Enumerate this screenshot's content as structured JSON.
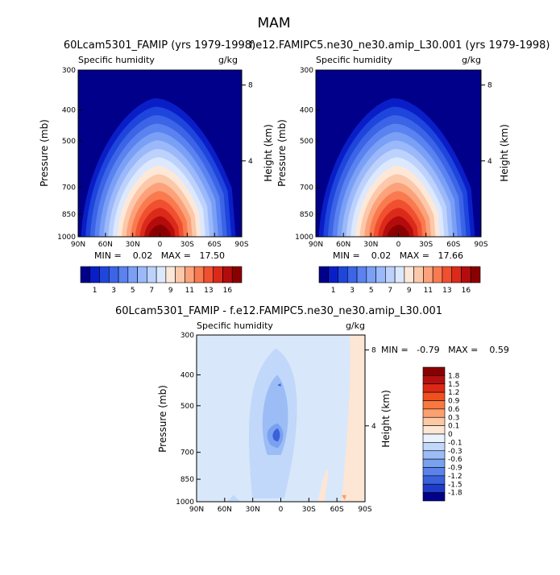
{
  "page_title": "MAM",
  "chart_data": [
    {
      "type": "contour",
      "title": "60Lcam5301_FAMIP (yrs 1979-1998)",
      "variable": "Specific humidity",
      "units": "g/kg",
      "xlabel": "",
      "ylabel": "Pressure (mb)",
      "y2label": "Height (km)",
      "x_ticks": [
        "90N",
        "60N",
        "30N",
        "0",
        "30S",
        "60S",
        "90S"
      ],
      "y_ticks": [
        "300",
        "400",
        "500",
        "700",
        "850",
        "1000"
      ],
      "y2_ticks": [
        "8",
        "4"
      ],
      "stats_text": "MIN =    0.02   MAX =   17.50",
      "min": 0.02,
      "max": 17.5,
      "colorbar_labels": [
        "1",
        "3",
        "5",
        "7",
        "9",
        "11",
        "13",
        "16"
      ],
      "colorbar_colors": [
        "#00008a",
        "#0a1ec8",
        "#1e46dc",
        "#3c64e6",
        "#5a82f0",
        "#7aa0f6",
        "#9ab8fa",
        "#bcd2fc",
        "#dce8fd",
        "#fde8d8",
        "#fcc8aa",
        "#fca27a",
        "#fa7a50",
        "#f05030",
        "#dc2a1a",
        "#b40c0c",
        "#8a0000"
      ]
    },
    {
      "type": "contour",
      "title": "f.e12.FAMIPC5.ne30_ne30.amip_L30.001 (yrs 1979-1998)",
      "variable": "Specific humidity",
      "units": "g/kg",
      "xlabel": "",
      "ylabel": "Pressure (mb)",
      "y2label": "Height (km)",
      "x_ticks": [
        "90N",
        "60N",
        "30N",
        "0",
        "30S",
        "60S",
        "90S"
      ],
      "y_ticks": [
        "300",
        "400",
        "500",
        "700",
        "850",
        "1000"
      ],
      "y2_ticks": [
        "8",
        "4"
      ],
      "stats_text": "MIN =    0.02   MAX =   17.66",
      "min": 0.02,
      "max": 17.66,
      "colorbar_labels": [
        "1",
        "3",
        "5",
        "7",
        "9",
        "11",
        "13",
        "16"
      ],
      "colorbar_colors": [
        "#00008a",
        "#0a1ec8",
        "#1e46dc",
        "#3c64e6",
        "#5a82f0",
        "#7aa0f6",
        "#9ab8fa",
        "#bcd2fc",
        "#dce8fd",
        "#fde8d8",
        "#fcc8aa",
        "#fca27a",
        "#fa7a50",
        "#f05030",
        "#dc2a1a",
        "#b40c0c",
        "#8a0000"
      ]
    },
    {
      "type": "contour",
      "title": "60Lcam5301_FAMIP - f.e12.FAMIPC5.ne30_ne30.amip_L30.001",
      "variable": "Specific humidity",
      "units": "g/kg",
      "xlabel": "",
      "ylabel": "Pressure (mb)",
      "y2label": "Height (km)",
      "x_ticks": [
        "90N",
        "60N",
        "30N",
        "0",
        "30S",
        "60S",
        "90S"
      ],
      "y_ticks": [
        "300",
        "400",
        "500",
        "700",
        "850",
        "1000"
      ],
      "y2_ticks": [
        "8",
        "4"
      ],
      "stats_text": "MIN =   -0.79   MAX =    0.59",
      "min": -0.79,
      "max": 0.59,
      "colorbar_labels": [
        "1.8",
        "1.5",
        "1.2",
        "0.9",
        "0.6",
        "0.3",
        "0.1",
        "0",
        "-0.1",
        "-0.3",
        "-0.6",
        "-0.9",
        "-1.2",
        "-1.5",
        "-1.8"
      ],
      "colorbar_colors": [
        "#8a0000",
        "#b41010",
        "#dc2814",
        "#f0501e",
        "#fa7840",
        "#fca070",
        "#fdc8a4",
        "#fde6d4",
        "#eaf2fd",
        "#c2d8fa",
        "#9cbcf6",
        "#7aa0f0",
        "#5a82ea",
        "#3a60dc",
        "#1e3cc8",
        "#00008a"
      ]
    }
  ]
}
